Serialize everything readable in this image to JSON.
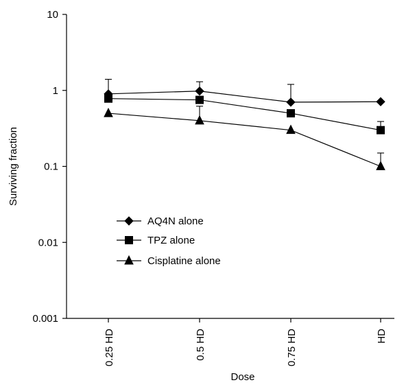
{
  "chart_data": {
    "type": "line",
    "xlabel": "Dose",
    "ylabel": "Surviving fraction",
    "y_scale": "log",
    "ylim": [
      0.001,
      10
    ],
    "y_ticks": [
      {
        "value": 0.001,
        "label": "0.001"
      },
      {
        "value": 0.01,
        "label": "0.01"
      },
      {
        "value": 0.1,
        "label": "0.1"
      },
      {
        "value": 1,
        "label": "1"
      },
      {
        "value": 10,
        "label": "10"
      }
    ],
    "categories": [
      "0.25 HD",
      "0.5 HD",
      "0.75 HD",
      "HD"
    ],
    "grid": false,
    "legend_position": "center-left",
    "series": [
      {
        "name": "AQ4N alone",
        "marker": "diamond",
        "values": [
          0.9,
          0.98,
          0.7,
          0.71
        ],
        "error_upper": [
          1.4,
          1.3,
          1.2,
          null
        ]
      },
      {
        "name": "TPZ alone",
        "marker": "square",
        "values": [
          0.78,
          0.75,
          0.5,
          0.3
        ],
        "error_upper": [
          null,
          null,
          null,
          0.39
        ]
      },
      {
        "name": "Cisplatine alone",
        "marker": "triangle",
        "values": [
          0.5,
          0.4,
          0.3,
          0.1
        ],
        "error_upper": [
          null,
          0.62,
          null,
          0.15
        ]
      }
    ]
  }
}
